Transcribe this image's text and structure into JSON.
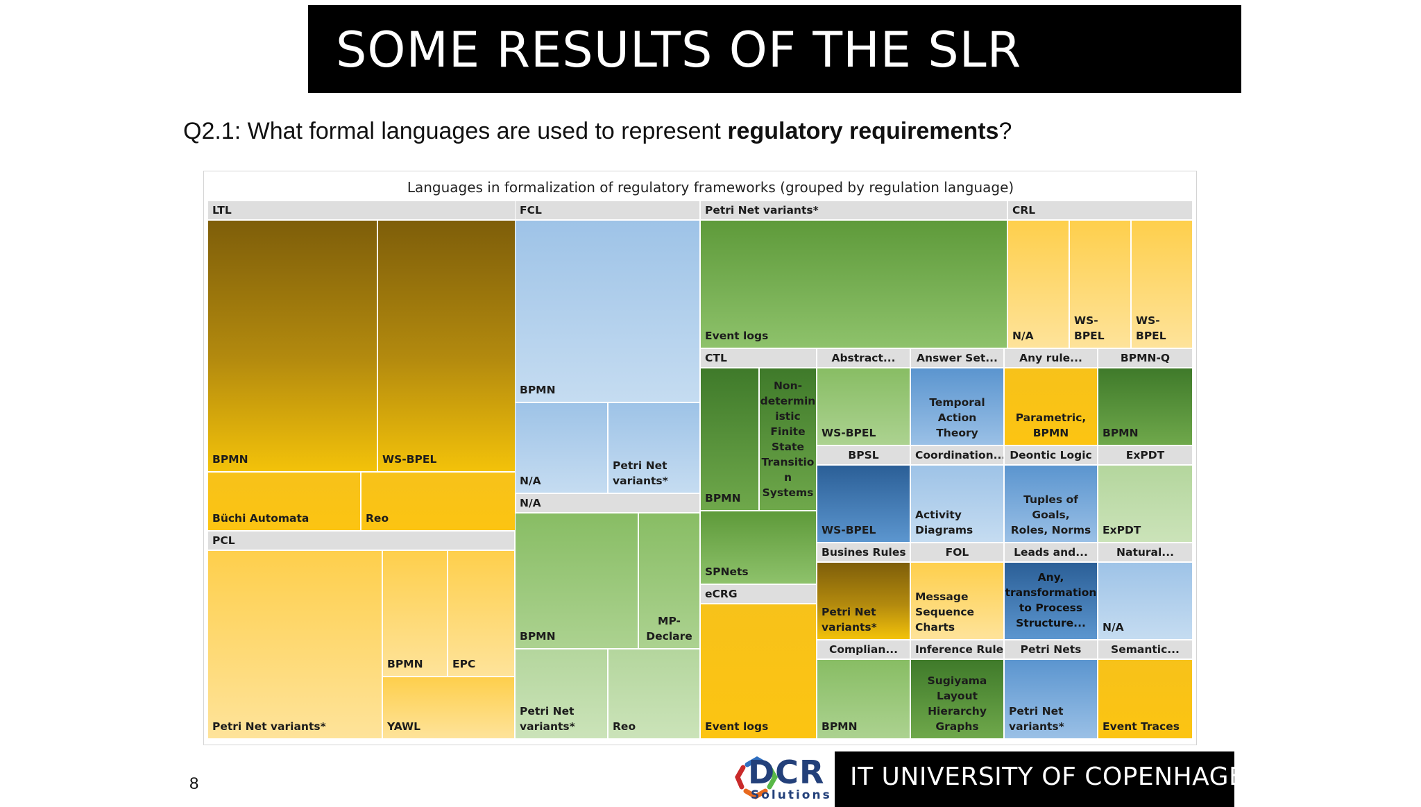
{
  "title": "SOME RESULTS OF THE SLR",
  "question": {
    "prefix": "Q2.1:  What  formal  languages  are  used  to  represent ",
    "emphasis": "regulatory requirements",
    "suffix": "?"
  },
  "page_number": "8",
  "footer": {
    "logo_name": "DCR",
    "logo_subtitle": "Solutions",
    "university": "IT UNIVERSITY OF COPENHAGEN"
  },
  "chart_data": {
    "type": "treemap",
    "title": "Languages in formalization of regulatory frameworks (grouped by regulation language)",
    "groups": [
      {
        "name": "LTL",
        "children": [
          "BPMN",
          "WS-BPEL",
          "Büchi Automata",
          "Reo"
        ]
      },
      {
        "name": "PCL",
        "children": [
          "Petri Net variants*",
          "BPMN",
          "EPC",
          "YAWL"
        ]
      },
      {
        "name": "FCL",
        "children": [
          "BPMN",
          "N/A",
          "Petri Net variants*"
        ]
      },
      {
        "name": "N/A",
        "children": [
          "BPMN",
          "MP-Declare",
          "Petri Net variants*",
          "Reo"
        ]
      },
      {
        "name": "Petri Net variants*",
        "children": [
          "Event logs"
        ]
      },
      {
        "name": "CRL",
        "children": [
          "N/A",
          "WS-BPEL",
          "WS-BPEL"
        ]
      },
      {
        "name": "CTL",
        "children": [
          "BPMN",
          "Non-deterministic Finite State Transition Systems"
        ]
      },
      {
        "name": "Abstract...",
        "children": [
          "WS-BPEL"
        ]
      },
      {
        "name": "Answer Set...",
        "children": [
          "Temporal Action Theory"
        ]
      },
      {
        "name": "Any rule...",
        "children": [
          "Parametric, BPMN"
        ]
      },
      {
        "name": "BPMN-Q",
        "children": [
          "BPMN"
        ]
      },
      {
        "name": "BPSL",
        "children": [
          "WS-BPEL"
        ]
      },
      {
        "name": "Coordination...",
        "children": [
          "Activity Diagrams"
        ]
      },
      {
        "name": "Deontic Logic",
        "children": [
          "Tuples of Goals, Roles, Norms"
        ]
      },
      {
        "name": "ExPDT",
        "children": [
          "ExPDT"
        ]
      },
      {
        "name": "SPNets",
        "children": []
      },
      {
        "name": "eCRG",
        "children": [
          "Event logs"
        ]
      },
      {
        "name": "Busines Rules",
        "children": [
          "Petri Net variants*"
        ]
      },
      {
        "name": "FOL",
        "children": [
          "Message Sequence Charts"
        ]
      },
      {
        "name": "Leads and...",
        "children": [
          "Any, transformation to Process Structure..."
        ]
      },
      {
        "name": "Natural...",
        "children": [
          "N/A"
        ]
      },
      {
        "name": "Complian...",
        "children": [
          "BPMN"
        ]
      },
      {
        "name": "Inference Rules",
        "children": [
          "Sugiyama Layout Hierarchy Graphs"
        ]
      },
      {
        "name": "Petri Nets",
        "children": [
          "Petri Net variants*"
        ]
      },
      {
        "name": "Semantic...",
        "children": [
          "Event Traces"
        ]
      }
    ],
    "headers": [
      "LTL",
      "FCL",
      "Petri Net variants*",
      "CRL",
      "PCL",
      "N/A",
      "CTL",
      "Abstract...",
      "Answer Set...",
      "Any rule...",
      "BPMN-Q",
      "BPSL",
      "Coordination...",
      "Deontic Logic",
      "ExPDT",
      "eCRG",
      "Busines Rules",
      "FOL",
      "Leads and...",
      "Natural...",
      "Complian...",
      "Inference Rules",
      "Petri Nets",
      "Semantic..."
    ],
    "cells": [
      {
        "label": "BPMN",
        "color": "gold-dark"
      },
      {
        "label": "WS-BPEL",
        "color": "gold-dark"
      },
      {
        "label": "Büchi Automata",
        "color": "gold"
      },
      {
        "label": "Reo",
        "color": "gold"
      },
      {
        "label": "Petri Net variants*",
        "color": "gold-light"
      },
      {
        "label": "BPMN",
        "color": "gold-light"
      },
      {
        "label": "EPC",
        "color": "gold-light"
      },
      {
        "label": "YAWL",
        "color": "gold-light"
      },
      {
        "label": "BPMN",
        "color": "blue-light"
      },
      {
        "label": "N/A",
        "color": "blue-light"
      },
      {
        "label": "Petri Net\nvariants*",
        "color": "blue-light"
      },
      {
        "label": "BPMN",
        "color": "green-light"
      },
      {
        "label": "MP-\nDeclare",
        "color": "green-light"
      },
      {
        "label": "Petri Net\nvariants*",
        "color": "green-pale"
      },
      {
        "label": "Reo",
        "color": "green-pale"
      },
      {
        "label": "Event logs",
        "color": "green"
      },
      {
        "label": "N/A",
        "color": "gold-light"
      },
      {
        "label": "WS-BPEL",
        "color": "gold-light"
      },
      {
        "label": "WS-BPEL",
        "color": "gold-light"
      },
      {
        "label": "BPMN",
        "color": "green-dark"
      },
      {
        "label": "Non-\ndetermin\nistic\nFinite\nState\nTransitio\nn\nSystems",
        "color": "green-dark"
      },
      {
        "label": "WS-BPEL",
        "color": "green-light"
      },
      {
        "label": "Temporal\nAction Theory",
        "color": "blue"
      },
      {
        "label": "Parametric,\nBPMN",
        "color": "gold"
      },
      {
        "label": "BPMN",
        "color": "green-dark"
      },
      {
        "label": "WS-BPEL",
        "color": "blue-dark"
      },
      {
        "label": "Activity\nDiagrams",
        "color": "blue-light"
      },
      {
        "label": "Tuples of Goals,\nRoles, Norms",
        "color": "blue"
      },
      {
        "label": "ExPDT",
        "color": "green-pale"
      },
      {
        "label": "SPNets",
        "color": "green"
      },
      {
        "label": "Event logs",
        "color": "gold"
      },
      {
        "label": "Petri Net\nvariants*",
        "color": "gold-dark"
      },
      {
        "label": "Message\nSequence\nCharts",
        "color": "gold-light"
      },
      {
        "label": "Any,\ntransformation\nto Process\nStructure...",
        "color": "blue-dark"
      },
      {
        "label": "N/A",
        "color": "blue-light"
      },
      {
        "label": "BPMN",
        "color": "green-light"
      },
      {
        "label": "Sugiyama\nLayout\nHierarchy\nGraphs",
        "color": "green-dark"
      },
      {
        "label": "Petri Net\nvariants*",
        "color": "blue"
      },
      {
        "label": "Event Traces",
        "color": "gold"
      }
    ]
  }
}
